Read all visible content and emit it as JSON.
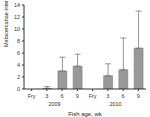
{
  "chart_data": {
    "type": "bar",
    "x_label": "Fish age, wk",
    "y_label": "Metacercariae intensity, no./fish",
    "categories": [
      "Fry",
      "3",
      "6",
      "9",
      "Fry",
      "3",
      "6",
      "9"
    ],
    "groups": [
      "2009",
      "2010"
    ],
    "values": [
      0,
      0.1,
      3,
      3.8,
      0,
      2.2,
      3.2,
      6.8
    ],
    "errors": [
      0,
      0.3,
      2.3,
      2,
      0,
      2,
      5.3,
      6.2
    ],
    "color": "#999999",
    "ylim": [
      0,
      14
    ],
    "yticks": [
      0,
      2,
      4,
      6,
      8,
      10,
      12,
      14
    ]
  }
}
